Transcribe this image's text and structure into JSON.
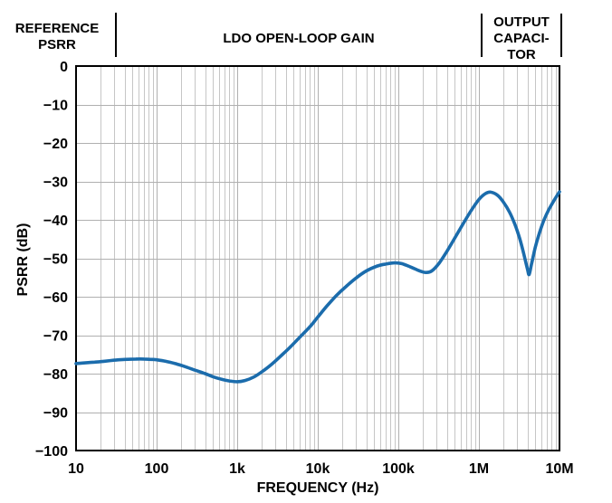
{
  "figure": {
    "regions": [
      {
        "label": "REFERENCE\nPSRR"
      },
      {
        "label": "LDO OPEN-LOOP GAIN"
      },
      {
        "label": "OUTPUT\nCAPACI-\nTOR"
      }
    ]
  },
  "chart_data": {
    "type": "line",
    "title": "",
    "xlabel": "FREQUENCY (Hz)",
    "ylabel": "PSRR (dB)",
    "x_scale": "log",
    "xlim": [
      10,
      10000000
    ],
    "ylim": [
      -100,
      0
    ],
    "x_ticks": [
      {
        "value": 10,
        "label": "10"
      },
      {
        "value": 100,
        "label": "100"
      },
      {
        "value": 1000,
        "label": "1k"
      },
      {
        "value": 10000,
        "label": "10k"
      },
      {
        "value": 100000,
        "label": "100k"
      },
      {
        "value": 1000000,
        "label": "1M"
      },
      {
        "value": 10000000,
        "label": "10M"
      }
    ],
    "y_ticks": [
      {
        "value": 0,
        "label": "0"
      },
      {
        "value": -10,
        "label": "−10"
      },
      {
        "value": -20,
        "label": "−20"
      },
      {
        "value": -30,
        "label": "−30"
      },
      {
        "value": -40,
        "label": "−40"
      },
      {
        "value": -50,
        "label": "−50"
      },
      {
        "value": -60,
        "label": "−60"
      },
      {
        "value": -70,
        "label": "−70"
      },
      {
        "value": -80,
        "label": "−80"
      },
      {
        "value": -90,
        "label": "−90"
      },
      {
        "value": -100,
        "label": "−100"
      }
    ],
    "grid": {
      "x_minor": true,
      "y_minor": false,
      "minor_color": "#c6c6c6",
      "major_color": "#b0b0b0"
    },
    "legend": "none",
    "series": [
      {
        "name": "PSRR",
        "color": "#1b6cac",
        "points": [
          [
            10,
            -77.4
          ],
          [
            13,
            -77.2
          ],
          [
            17,
            -77.0
          ],
          [
            22,
            -76.8
          ],
          [
            30,
            -76.5
          ],
          [
            40,
            -76.3
          ],
          [
            55,
            -76.2
          ],
          [
            70,
            -76.2
          ],
          [
            85,
            -76.3
          ],
          [
            100,
            -76.4
          ],
          [
            130,
            -76.8
          ],
          [
            170,
            -77.4
          ],
          [
            220,
            -78.1
          ],
          [
            300,
            -79.1
          ],
          [
            400,
            -80.0
          ],
          [
            500,
            -80.8
          ],
          [
            650,
            -81.5
          ],
          [
            800,
            -81.9
          ],
          [
            1000,
            -82.1
          ],
          [
            1250,
            -81.8
          ],
          [
            1600,
            -80.9
          ],
          [
            2000,
            -79.6
          ],
          [
            2600,
            -77.8
          ],
          [
            3400,
            -75.6
          ],
          [
            4500,
            -73.2
          ],
          [
            6000,
            -70.5
          ],
          [
            8000,
            -67.8
          ],
          [
            10000,
            -65.3
          ],
          [
            13000,
            -62.4
          ],
          [
            17000,
            -59.7
          ],
          [
            22000,
            -57.5
          ],
          [
            30000,
            -55.1
          ],
          [
            40000,
            -53.3
          ],
          [
            55000,
            -52.0
          ],
          [
            70000,
            -51.5
          ],
          [
            90000,
            -51.2
          ],
          [
            110000,
            -51.4
          ],
          [
            140000,
            -52.2
          ],
          [
            180000,
            -53.2
          ],
          [
            220000,
            -53.7
          ],
          [
            260000,
            -53.3
          ],
          [
            320000,
            -51.3
          ],
          [
            400000,
            -48.2
          ],
          [
            500000,
            -44.8
          ],
          [
            630000,
            -41.2
          ],
          [
            800000,
            -37.6
          ],
          [
            1000000,
            -34.7
          ],
          [
            1200000,
            -33.2
          ],
          [
            1400000,
            -32.8
          ],
          [
            1700000,
            -33.6
          ],
          [
            2000000,
            -35.3
          ],
          [
            2400000,
            -38.0
          ],
          [
            2800000,
            -41.2
          ],
          [
            3200000,
            -44.8
          ],
          [
            3600000,
            -48.8
          ],
          [
            4000000,
            -52.8
          ],
          [
            4200000,
            -54.2
          ],
          [
            4500000,
            -51.5
          ],
          [
            5000000,
            -47.2
          ],
          [
            5600000,
            -43.6
          ],
          [
            6300000,
            -40.5
          ],
          [
            7100000,
            -38.0
          ],
          [
            8000000,
            -36.0
          ],
          [
            9000000,
            -34.2
          ],
          [
            10000000,
            -32.7
          ]
        ]
      }
    ]
  }
}
